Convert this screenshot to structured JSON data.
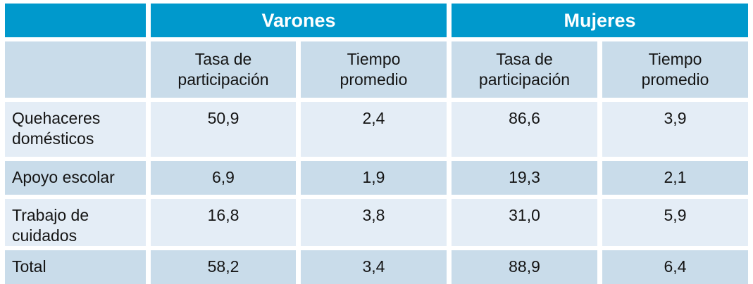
{
  "table": {
    "group_headers": [
      {
        "label": "Varones"
      },
      {
        "label": "Mujeres"
      }
    ],
    "column_headers": [
      "Tasa de\nparticipación",
      "Tiempo\npromedio",
      "Tasa de\nparticipación",
      "Tiempo\npromedio"
    ],
    "rows": [
      {
        "label": "Quehaceres\ndomésticos",
        "values": [
          "50,9",
          "2,4",
          "86,6",
          "3,9"
        ]
      },
      {
        "label": "Apoyo escolar",
        "values": [
          "6,9",
          "1,9",
          "19,3",
          "2,1"
        ]
      },
      {
        "label": "Trabajo de\ncuidados",
        "values": [
          "16,8",
          "3,8",
          "31,0",
          "5,9"
        ]
      },
      {
        "label": "Total",
        "values": [
          "58,2",
          "3,4",
          "88,9",
          "6,4"
        ]
      }
    ]
  },
  "colors": {
    "header_blue": "#0099cc",
    "header_text": "#ffffff",
    "row_light": "#e4edf6",
    "row_medium": "#c9dcea",
    "body_text": "#141414"
  },
  "chart_data": {
    "type": "table",
    "column_groups": [
      "Varones",
      "Mujeres"
    ],
    "columns": [
      "Varones - Tasa de participación",
      "Varones - Tiempo promedio",
      "Mujeres - Tasa de participación",
      "Mujeres - Tiempo promedio"
    ],
    "row_labels": [
      "Quehaceres domésticos",
      "Apoyo escolar",
      "Trabajo de cuidados",
      "Total"
    ],
    "values": [
      [
        50.9,
        2.4,
        86.6,
        3.9
      ],
      [
        6.9,
        1.9,
        19.3,
        2.1
      ],
      [
        16.8,
        3.8,
        31.0,
        5.9
      ],
      [
        58.2,
        3.4,
        88.9,
        6.4
      ]
    ]
  }
}
